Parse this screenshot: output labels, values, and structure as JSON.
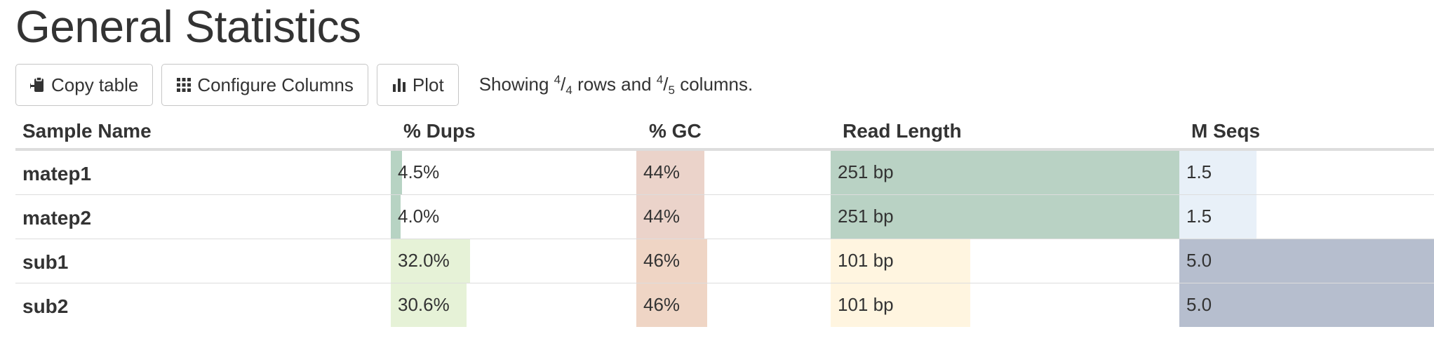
{
  "page": {
    "title": "General Statistics"
  },
  "toolbar": {
    "copy_label": "Copy table",
    "configure_label": "Configure Columns",
    "plot_label": "Plot",
    "status": {
      "prefix": "Showing",
      "rows_shown": "4",
      "rows_total": "4",
      "rows_word": "rows and",
      "cols_shown": "4",
      "cols_total": "5",
      "cols_word": "columns."
    }
  },
  "table": {
    "headers": {
      "sample": "Sample Name",
      "dups": "% Dups",
      "gc": "% GC",
      "readlen": "Read Length",
      "mseqs": "M Seqs"
    },
    "rows": [
      {
        "name": "matep1",
        "dups": {
          "text": "4.5%",
          "fill": 0.045,
          "color": "#b7d3c3"
        },
        "gc": {
          "text": "44%",
          "fill": 0.44,
          "color": "#ebd3ca"
        },
        "readlen": {
          "text": "251 bp",
          "fill": 1.0,
          "color": "#b9d2c4"
        },
        "mseqs": {
          "text": "1.5",
          "fill": 0.3,
          "color": "#e8f0f8"
        }
      },
      {
        "name": "matep2",
        "dups": {
          "text": "4.0%",
          "fill": 0.04,
          "color": "#b7d3c3"
        },
        "gc": {
          "text": "44%",
          "fill": 0.44,
          "color": "#ebd3ca"
        },
        "readlen": {
          "text": "251 bp",
          "fill": 1.0,
          "color": "#b9d2c4"
        },
        "mseqs": {
          "text": "1.5",
          "fill": 0.3,
          "color": "#e8f0f8"
        }
      },
      {
        "name": "sub1",
        "dups": {
          "text": "32.0%",
          "fill": 0.32,
          "color": "#e6f2d7"
        },
        "gc": {
          "text": "46%",
          "fill": 0.46,
          "color": "#efd5c5"
        },
        "readlen": {
          "text": "101 bp",
          "fill": 0.4,
          "color": "#fff5e0"
        },
        "mseqs": {
          "text": "5.0",
          "fill": 1.0,
          "color": "#b6bece"
        }
      },
      {
        "name": "sub2",
        "dups": {
          "text": "30.6%",
          "fill": 0.306,
          "color": "#e6f2d7"
        },
        "gc": {
          "text": "46%",
          "fill": 0.46,
          "color": "#efd5c5"
        },
        "readlen": {
          "text": "101 bp",
          "fill": 0.4,
          "color": "#fff5e0"
        },
        "mseqs": {
          "text": "5.0",
          "fill": 1.0,
          "color": "#b6bece"
        }
      }
    ]
  }
}
